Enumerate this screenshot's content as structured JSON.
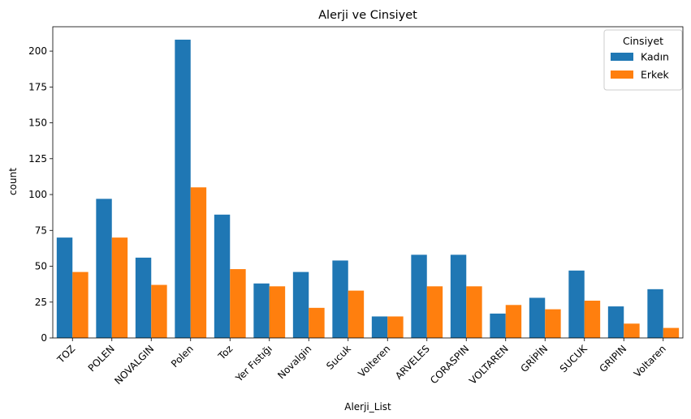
{
  "chart_data": {
    "type": "bar",
    "title": "Alerji ve Cinsiyet",
    "xlabel": "Alerji_List",
    "ylabel": "count",
    "ylim": [
      0,
      217
    ],
    "yticks": [
      0,
      25,
      50,
      75,
      100,
      125,
      150,
      175,
      200
    ],
    "categories": [
      "TOZ",
      "POLEN",
      "NOVALGIN",
      "Polen",
      "Toz",
      "Yer Fıstığı",
      "Novalgin",
      "Sucuk",
      "Volteren",
      "ARVELES",
      "CORASPIN",
      "VOLTAREN",
      "GRİPİN",
      "SUCUK",
      "GRIPIN",
      "Voltaren"
    ],
    "series": [
      {
        "name": "Kadın",
        "color": "#1f77b4",
        "values": [
          70,
          97,
          56,
          208,
          86,
          38,
          46,
          54,
          15,
          58,
          58,
          17,
          28,
          47,
          22,
          34
        ]
      },
      {
        "name": "Erkek",
        "color": "#ff7f0e",
        "values": [
          46,
          70,
          37,
          105,
          48,
          36,
          21,
          33,
          15,
          36,
          36,
          23,
          20,
          26,
          10,
          7
        ]
      }
    ],
    "legend": {
      "title": "Cinsiyet",
      "position": "top-right"
    },
    "grid": false
  }
}
